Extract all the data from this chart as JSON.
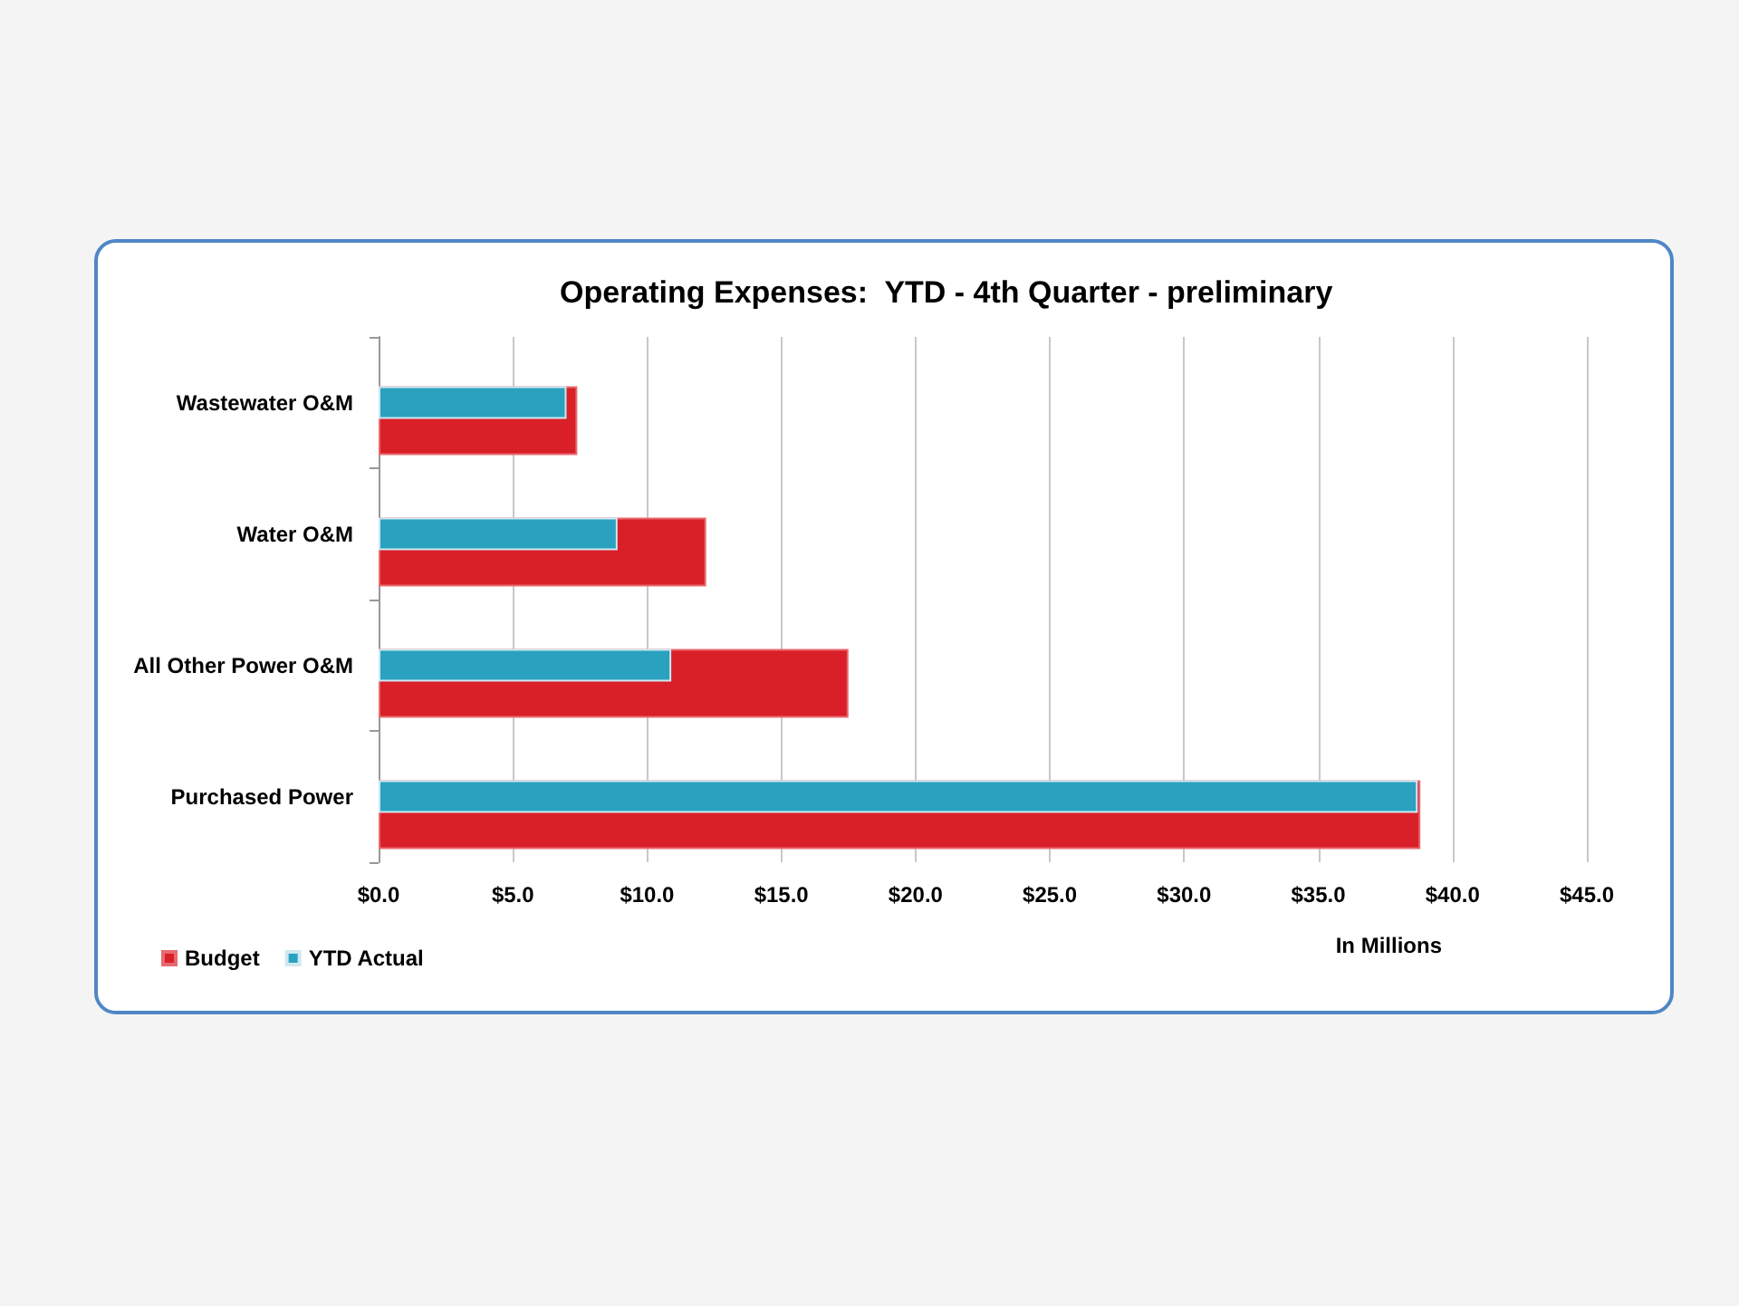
{
  "chart_data": {
    "type": "bar",
    "orientation": "horizontal",
    "title": "Operating Expenses:  YTD - 4th Quarter - preliminary",
    "xlabel": "In Millions",
    "categories": [
      "Wastewater O&M",
      "Water O&M",
      "All Other Power O&M",
      "Purchased Power"
    ],
    "series": [
      {
        "name": "Budget",
        "color": "#d91f28",
        "values": [
          7.4,
          12.2,
          17.5,
          38.8
        ]
      },
      {
        "name": "YTD Actual",
        "color": "#2aa1bf",
        "values": [
          7.0,
          8.9,
          10.9,
          38.7
        ]
      }
    ],
    "xlim": [
      0,
      45
    ],
    "xticks": [
      {
        "value": 0,
        "label": "$0.0"
      },
      {
        "value": 5,
        "label": "$5.0"
      },
      {
        "value": 10,
        "label": "$10.0"
      },
      {
        "value": 15,
        "label": "$15.0"
      },
      {
        "value": 20,
        "label": "$20.0"
      },
      {
        "value": 25,
        "label": "$25.0"
      },
      {
        "value": 30,
        "label": "$30.0"
      },
      {
        "value": 35,
        "label": "$35.0"
      },
      {
        "value": 40,
        "label": "$40.0"
      },
      {
        "value": 45,
        "label": "$45.0"
      }
    ],
    "grid": "x",
    "legend": "bottom left"
  }
}
